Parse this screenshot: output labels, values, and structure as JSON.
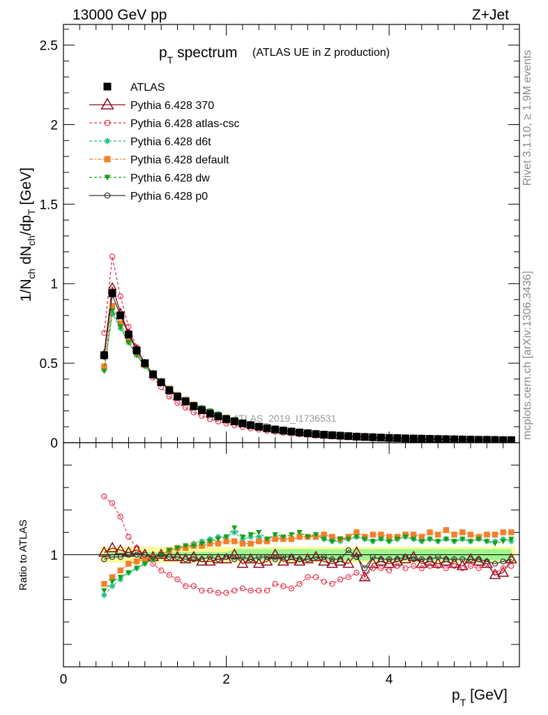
{
  "header": {
    "left": "13000 GeV pp",
    "right": "Z+Jet"
  },
  "side_labels": {
    "rivet": "Rivet 3.1.10, ≥ 1.9M events",
    "mcplots": "mcplots.cern.ch [arXiv:1306.3436]"
  },
  "watermark": "ATLAS_2019_I1736531",
  "chart_data": [
    {
      "type": "line",
      "panel": "main",
      "title_main": "p",
      "title_sub": "T",
      "title_word": " spectrum",
      "title_paren": "(ATLAS UE in Z production)",
      "ylabel": "1/N_ch dN_ch/dp_T [GeV]",
      "ylim": [
        0,
        2.63
      ],
      "yticks": [
        0.5,
        1,
        1.5,
        2,
        2.5
      ],
      "ytick_labels": [
        "0.5",
        "1",
        "1.5",
        "2",
        "2.5"
      ],
      "y_bottom_label": "0",
      "x": [
        0.5,
        0.6,
        0.7,
        0.8,
        0.9,
        1.0,
        1.1,
        1.2,
        1.3,
        1.4,
        1.5,
        1.6,
        1.7,
        1.8,
        1.9,
        2.0,
        2.1,
        2.2,
        2.3,
        2.4,
        2.5,
        2.6,
        2.7,
        2.8,
        2.9,
        3.0,
        3.1,
        3.2,
        3.3,
        3.4,
        3.5,
        3.6,
        3.7,
        3.8,
        3.9,
        4.0,
        4.1,
        4.2,
        4.3,
        4.4,
        4.5,
        4.6,
        4.7,
        4.8,
        4.9,
        5.0,
        5.1,
        5.2,
        5.3,
        5.4,
        5.5
      ],
      "series": [
        {
          "name": "ATLAS",
          "values": [
            0.55,
            0.94,
            0.8,
            0.68,
            0.58,
            0.5,
            0.43,
            0.38,
            0.33,
            0.29,
            0.26,
            0.23,
            0.205,
            0.183,
            0.165,
            0.148,
            0.134,
            0.121,
            0.11,
            0.1,
            0.091,
            0.083,
            0.076,
            0.07,
            0.064,
            0.059,
            0.054,
            0.05,
            0.047,
            0.044,
            0.041,
            0.038,
            0.036,
            0.034,
            0.032,
            0.03,
            0.029,
            0.027,
            0.026,
            0.025,
            0.024,
            0.023,
            0.022,
            0.021,
            0.02,
            0.019,
            0.018,
            0.018,
            0.017,
            0.016,
            0.016
          ]
        },
        {
          "name": "Pythia 6.428 370",
          "values": [
            0.56,
            0.98,
            0.82,
            0.69,
            0.59,
            0.5,
            0.43,
            0.38,
            0.33,
            0.29,
            0.255,
            0.225,
            0.2,
            0.178,
            0.16,
            0.145,
            0.13,
            0.118,
            0.108,
            0.098,
            0.089,
            0.082,
            0.075,
            0.069,
            0.063,
            0.058,
            0.053,
            0.049,
            0.046,
            0.043,
            0.04,
            0.037,
            0.035,
            0.033,
            0.031,
            0.029,
            0.028,
            0.026,
            0.025,
            0.024,
            0.023,
            0.022,
            0.021,
            0.02,
            0.019,
            0.018,
            0.017,
            0.017,
            0.016,
            0.015,
            0.015
          ]
        },
        {
          "name": "Pythia 6.428 atlas-csc",
          "values": [
            0.69,
            1.17,
            0.92,
            0.73,
            0.6,
            0.49,
            0.41,
            0.35,
            0.29,
            0.25,
            0.22,
            0.19,
            0.168,
            0.148,
            0.133,
            0.12,
            0.109,
            0.099,
            0.09,
            0.082,
            0.075,
            0.068,
            0.062,
            0.057,
            0.053,
            0.049,
            0.045,
            0.042,
            0.039,
            0.036,
            0.034,
            0.032,
            0.03,
            0.028,
            0.027,
            0.025,
            0.024,
            0.023,
            0.022,
            0.021,
            0.02,
            0.019,
            0.018,
            0.017,
            0.017,
            0.016,
            0.015,
            0.015,
            0.014,
            0.014,
            0.013
          ]
        },
        {
          "name": "Pythia 6.428 d6t",
          "values": [
            0.46,
            0.81,
            0.72,
            0.63,
            0.55,
            0.48,
            0.42,
            0.38,
            0.34,
            0.3,
            0.27,
            0.24,
            0.22,
            0.2,
            0.18,
            0.16,
            0.145,
            0.13,
            0.118,
            0.108,
            0.098,
            0.09,
            0.082,
            0.075,
            0.069,
            0.064,
            0.059,
            0.055,
            0.051,
            0.047,
            0.044,
            0.041,
            0.039,
            0.036,
            0.034,
            0.032,
            0.031,
            0.029,
            0.028,
            0.027,
            0.026,
            0.025,
            0.024,
            0.023,
            0.022,
            0.021,
            0.02,
            0.019,
            0.019,
            0.018,
            0.017
          ]
        },
        {
          "name": "Pythia 6.428 default",
          "values": [
            0.48,
            0.86,
            0.75,
            0.65,
            0.56,
            0.49,
            0.43,
            0.38,
            0.34,
            0.3,
            0.27,
            0.24,
            0.215,
            0.195,
            0.175,
            0.157,
            0.142,
            0.128,
            0.116,
            0.106,
            0.097,
            0.089,
            0.081,
            0.075,
            0.069,
            0.064,
            0.059,
            0.055,
            0.051,
            0.047,
            0.044,
            0.041,
            0.039,
            0.036,
            0.034,
            0.032,
            0.031,
            0.029,
            0.028,
            0.027,
            0.026,
            0.025,
            0.024,
            0.023,
            0.022,
            0.021,
            0.02,
            0.019,
            0.019,
            0.018,
            0.017
          ]
        },
        {
          "name": "Pythia 6.428 dw",
          "values": [
            0.45,
            0.83,
            0.73,
            0.63,
            0.55,
            0.48,
            0.42,
            0.38,
            0.34,
            0.3,
            0.27,
            0.24,
            0.22,
            0.2,
            0.18,
            0.16,
            0.145,
            0.13,
            0.118,
            0.108,
            0.098,
            0.09,
            0.082,
            0.075,
            0.069,
            0.064,
            0.059,
            0.055,
            0.051,
            0.047,
            0.044,
            0.041,
            0.039,
            0.036,
            0.034,
            0.032,
            0.031,
            0.029,
            0.028,
            0.027,
            0.026,
            0.025,
            0.024,
            0.023,
            0.022,
            0.021,
            0.02,
            0.019,
            0.019,
            0.018,
            0.017
          ]
        },
        {
          "name": "Pythia 6.428 p0",
          "values": [
            0.54,
            0.93,
            0.8,
            0.68,
            0.58,
            0.5,
            0.43,
            0.38,
            0.33,
            0.29,
            0.255,
            0.225,
            0.2,
            0.18,
            0.162,
            0.146,
            0.132,
            0.12,
            0.109,
            0.099,
            0.09,
            0.082,
            0.075,
            0.069,
            0.063,
            0.058,
            0.053,
            0.049,
            0.046,
            0.043,
            0.04,
            0.037,
            0.035,
            0.033,
            0.031,
            0.029,
            0.028,
            0.026,
            0.025,
            0.024,
            0.023,
            0.022,
            0.021,
            0.02,
            0.019,
            0.018,
            0.017,
            0.017,
            0.016,
            0.015,
            0.015
          ]
        }
      ]
    },
    {
      "type": "line",
      "panel": "ratio",
      "ylabel": "Ratio to ATLAS",
      "ylim": [
        0.5,
        1.5
      ],
      "yticks": [
        1
      ],
      "ytick_labels": [
        "1"
      ],
      "xlabel_main": "p",
      "xlabel_sub": "T",
      "xlabel_unit": " [GeV]",
      "xlim": [
        0,
        5.6
      ],
      "xticks": [
        0,
        2,
        4
      ],
      "xtick_labels": [
        "0",
        "2",
        "4"
      ],
      "band_inner": 0.02,
      "band_outer": 0.035,
      "x": [
        0.5,
        0.6,
        0.7,
        0.8,
        0.9,
        1.0,
        1.1,
        1.2,
        1.3,
        1.4,
        1.5,
        1.6,
        1.7,
        1.8,
        1.9,
        2.0,
        2.1,
        2.2,
        2.3,
        2.4,
        2.5,
        2.6,
        2.7,
        2.8,
        2.9,
        3.0,
        3.1,
        3.2,
        3.3,
        3.4,
        3.5,
        3.6,
        3.7,
        3.8,
        3.9,
        4.0,
        4.1,
        4.2,
        4.3,
        4.4,
        4.5,
        4.6,
        4.7,
        4.8,
        4.9,
        5.0,
        5.1,
        5.2,
        5.3,
        5.4,
        5.5
      ],
      "series": [
        {
          "name": "Pythia 6.428 370",
          "values": [
            1.01,
            1.03,
            1.02,
            1.01,
            1.02,
            1.0,
            0.99,
            1.0,
            0.99,
            0.99,
            0.98,
            0.99,
            0.97,
            0.97,
            0.98,
            0.98,
            1.0,
            0.96,
            0.98,
            0.96,
            0.97,
            1.0,
            0.97,
            0.98,
            0.97,
            0.98,
            0.99,
            0.97,
            0.96,
            0.97,
            0.96,
            1.01,
            0.9,
            0.96,
            0.97,
            0.96,
            0.97,
            0.98,
            0.99,
            0.96,
            0.97,
            0.96,
            0.97,
            0.96,
            0.95,
            0.98,
            0.97,
            0.96,
            0.91,
            0.92,
            0.98
          ]
        },
        {
          "name": "Pythia 6.428 atlas-csc",
          "values": [
            1.26,
            1.23,
            1.17,
            1.08,
            1.03,
            1.0,
            0.96,
            0.93,
            0.91,
            0.89,
            0.86,
            0.86,
            0.84,
            0.84,
            0.83,
            0.83,
            0.84,
            0.85,
            0.84,
            0.84,
            0.84,
            0.87,
            0.86,
            0.85,
            0.87,
            0.9,
            0.9,
            0.88,
            0.87,
            0.89,
            0.9,
            0.92,
            0.9,
            0.94,
            0.94,
            0.93,
            0.95,
            0.94,
            0.95,
            0.94,
            0.95,
            0.95,
            0.94,
            0.95,
            0.94,
            0.95,
            0.94,
            0.96,
            0.92,
            0.94,
            0.95
          ]
        },
        {
          "name": "Pythia 6.428 d6t",
          "values": [
            0.82,
            0.86,
            0.89,
            0.92,
            0.94,
            0.96,
            0.98,
            1.0,
            1.02,
            1.03,
            1.04,
            1.05,
            1.06,
            1.07,
            1.08,
            1.08,
            1.1,
            1.07,
            1.08,
            1.08,
            1.07,
            1.08,
            1.07,
            1.07,
            1.08,
            1.08,
            1.09,
            1.07,
            1.06,
            1.06,
            1.07,
            1.08,
            1.07,
            1.06,
            1.07,
            1.06,
            1.07,
            1.08,
            1.07,
            1.06,
            1.07,
            1.06,
            1.07,
            1.06,
            1.07,
            1.06,
            1.07,
            1.06,
            1.06,
            1.07,
            1.06
          ]
        },
        {
          "name": "Pythia 6.428 default",
          "values": [
            0.87,
            0.9,
            0.93,
            0.96,
            0.97,
            0.98,
            0.99,
            1.0,
            1.02,
            1.03,
            1.03,
            1.04,
            1.04,
            1.05,
            1.05,
            1.06,
            1.06,
            1.05,
            1.05,
            1.06,
            1.06,
            1.07,
            1.07,
            1.07,
            1.08,
            1.08,
            1.08,
            1.09,
            1.08,
            1.07,
            1.08,
            1.1,
            1.08,
            1.09,
            1.09,
            1.08,
            1.08,
            1.09,
            1.09,
            1.08,
            1.1,
            1.09,
            1.11,
            1.09,
            1.1,
            1.09,
            1.08,
            1.09,
            1.09,
            1.1,
            1.1
          ]
        },
        {
          "name": "Pythia 6.428 dw",
          "values": [
            0.84,
            0.88,
            0.9,
            0.92,
            0.94,
            0.96,
            0.98,
            1.0,
            1.02,
            1.03,
            1.04,
            1.04,
            1.05,
            1.06,
            1.07,
            1.08,
            1.12,
            1.08,
            1.09,
            1.1,
            1.07,
            1.09,
            1.08,
            1.09,
            1.1,
            1.08,
            1.09,
            1.07,
            1.06,
            1.07,
            1.07,
            1.08,
            1.07,
            1.06,
            1.07,
            1.06,
            1.07,
            1.08,
            1.07,
            1.06,
            1.07,
            1.06,
            1.07,
            1.06,
            1.07,
            1.06,
            1.07,
            1.06,
            1.05,
            1.06,
            1.07
          ]
        },
        {
          "name": "Pythia 6.428 p0",
          "values": [
            0.98,
            0.99,
            0.99,
            1.0,
            1.0,
            1.0,
            0.99,
            1.0,
            0.99,
            0.99,
            0.98,
            0.98,
            0.98,
            0.99,
            0.98,
            0.99,
            0.98,
            0.99,
            0.98,
            0.99,
            0.99,
            0.98,
            0.99,
            0.99,
            0.98,
            0.98,
            0.99,
            0.99,
            0.98,
            0.98,
            1.02,
            0.99,
            0.94,
            0.99,
            0.98,
            0.98,
            0.98,
            0.99,
            0.98,
            0.98,
            0.98,
            0.99,
            0.98,
            0.98,
            0.98,
            0.98,
            0.98,
            0.97,
            0.96,
            0.97,
            0.98
          ]
        }
      ]
    }
  ],
  "styles": [
    {
      "name": "ATLAS",
      "color": "#000000",
      "marker": "square-filled",
      "dash": "none",
      "line": false
    },
    {
      "name": "Pythia 6.428 370",
      "color": "#8b0a1e",
      "marker": "triangle-open",
      "dash": "none",
      "line": true
    },
    {
      "name": "Pythia 6.428 atlas-csc",
      "color": "#e8304a",
      "marker": "circle-open",
      "dash": "4,3",
      "line": true
    },
    {
      "name": "Pythia 6.428 d6t",
      "color": "#1fbf8a",
      "marker": "star",
      "dash": "4,3",
      "line": true
    },
    {
      "name": "Pythia 6.428 default",
      "color": "#f47f2b",
      "marker": "square-filled",
      "dash": "6,2,2,2",
      "line": true
    },
    {
      "name": "Pythia 6.428 dw",
      "color": "#18a018",
      "marker": "triangle-down-filled",
      "dash": "4,3",
      "line": true
    },
    {
      "name": "Pythia 6.428 p0",
      "color": "#333333",
      "marker": "circle-open",
      "dash": "none",
      "line": true
    }
  ],
  "band_colors": {
    "inner": "#9ef58e",
    "outer": "#fbfb9a"
  }
}
